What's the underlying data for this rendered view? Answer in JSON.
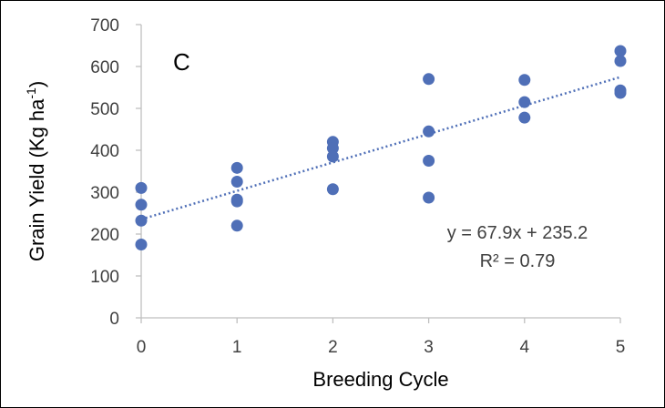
{
  "chart_data": {
    "type": "scatter",
    "panel_label": "C",
    "xlabel": "Breeding Cycle",
    "ylabel": "Grain Yield (Kg ha",
    "ylabel_superscript": "-1",
    "ylabel_suffix": ")",
    "xlim": [
      0,
      5
    ],
    "ylim": [
      0,
      700
    ],
    "xticks": [
      0,
      1,
      2,
      3,
      4,
      5
    ],
    "yticks": [
      0,
      100,
      200,
      300,
      400,
      500,
      600,
      700
    ],
    "grid": false,
    "point_color": "#4f6fb7",
    "trendline_color": "#4f6fb7",
    "points": [
      {
        "x": 0,
        "y": 310
      },
      {
        "x": 0,
        "y": 270
      },
      {
        "x": 0,
        "y": 232
      },
      {
        "x": 0,
        "y": 175
      },
      {
        "x": 1,
        "y": 358
      },
      {
        "x": 1,
        "y": 325
      },
      {
        "x": 1,
        "y": 282
      },
      {
        "x": 1,
        "y": 278
      },
      {
        "x": 1,
        "y": 220
      },
      {
        "x": 2,
        "y": 420
      },
      {
        "x": 2,
        "y": 405
      },
      {
        "x": 2,
        "y": 385
      },
      {
        "x": 2,
        "y": 307
      },
      {
        "x": 3,
        "y": 570
      },
      {
        "x": 3,
        "y": 445
      },
      {
        "x": 3,
        "y": 375
      },
      {
        "x": 3,
        "y": 287
      },
      {
        "x": 4,
        "y": 568
      },
      {
        "x": 4,
        "y": 515
      },
      {
        "x": 4,
        "y": 478
      },
      {
        "x": 5,
        "y": 637
      },
      {
        "x": 5,
        "y": 613
      },
      {
        "x": 5,
        "y": 543
      },
      {
        "x": 5,
        "y": 537
      }
    ],
    "trendline": {
      "slope": 67.9,
      "intercept": 235.2
    },
    "equation_text": "y = 67.9x + 235.2",
    "r2_text": "R² = 0.79"
  }
}
